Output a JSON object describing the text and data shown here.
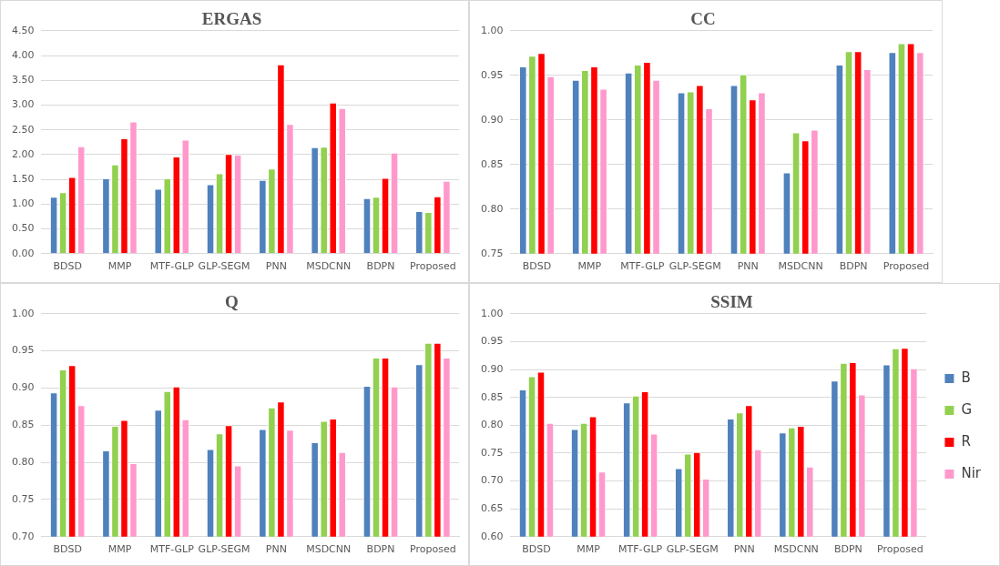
{
  "chart_data": [
    {
      "type": "bar",
      "title": "ERGAS",
      "categories": [
        "BDSD",
        "MMP",
        "MTF-GLP",
        "GLP-SEGM",
        "PNN",
        "MSDCNN",
        "BDPN",
        "Proposed"
      ],
      "series": [
        {
          "color": "#4f81bd",
          "values": [
            1.15,
            1.52,
            1.31,
            1.4,
            1.49,
            2.15,
            1.12,
            0.86
          ]
        },
        {
          "color": "#92d050",
          "values": [
            1.24,
            1.8,
            1.52,
            1.62,
            1.72,
            2.16,
            1.15,
            0.84
          ]
        },
        {
          "color": "#ff0000",
          "values": [
            1.55,
            2.33,
            1.96,
            2.01,
            3.82,
            3.05,
            1.53,
            1.16
          ]
        },
        {
          "color": "#ff99cc",
          "values": [
            2.17,
            2.67,
            2.3,
            2.0,
            2.62,
            2.94,
            2.04,
            1.47
          ]
        }
      ],
      "ylim": [
        0,
        4.5
      ],
      "yticks": [
        {
          "value": 0,
          "label": "0.00"
        },
        {
          "value": 0.5,
          "label": "0.50"
        },
        {
          "value": 1,
          "label": "1.00"
        },
        {
          "value": 1.5,
          "label": "1.50"
        },
        {
          "value": 2,
          "label": "2.00"
        },
        {
          "value": 2.5,
          "label": "2.50"
        },
        {
          "value": 3,
          "label": "3.00"
        },
        {
          "value": 3.5,
          "label": "3.50"
        },
        {
          "value": 4,
          "label": "4.00"
        },
        {
          "value": 4.5,
          "label": "4.50"
        }
      ],
      "grid": "y",
      "legend": false
    },
    {
      "type": "bar",
      "title": "CC",
      "categories": [
        "BDSD",
        "MMP",
        "MTF-GLP",
        "GLP-SEGM",
        "PNN",
        "MSDCNN",
        "BDPN",
        "Proposed"
      ],
      "series": [
        {
          "color": "#4f81bd",
          "values": [
            0.96,
            0.945,
            0.953,
            0.931,
            0.939,
            0.841,
            0.962,
            0.976
          ]
        },
        {
          "color": "#92d050",
          "values": [
            0.972,
            0.956,
            0.962,
            0.932,
            0.951,
            0.886,
            0.977,
            0.986
          ]
        },
        {
          "color": "#ff0000",
          "values": [
            0.975,
            0.96,
            0.965,
            0.939,
            0.923,
            0.877,
            0.977,
            0.986
          ]
        },
        {
          "color": "#ff99cc",
          "values": [
            0.949,
            0.935,
            0.945,
            0.913,
            0.931,
            0.889,
            0.957,
            0.976
          ]
        }
      ],
      "ylim": [
        0.75,
        1
      ],
      "yticks": [
        0.75,
        {
          "value": 0.8,
          "label": "0.80"
        },
        0.85,
        {
          "value": 0.9,
          "label": "0.90"
        },
        0.95,
        {
          "value": 1,
          "label": "1.00"
        }
      ],
      "grid": "y",
      "legend": false
    },
    {
      "type": "bar",
      "title": "Q",
      "categories": [
        "BDSD",
        "MMP",
        "MTF-GLP",
        "GLP-SEGM",
        "PNN",
        "MSDCNN",
        "BDPN",
        "Proposed"
      ],
      "series": [
        {
          "color": "#4f81bd",
          "values": [
            0.894,
            0.816,
            0.871,
            0.818,
            0.845,
            0.827,
            0.903,
            0.932
          ]
        },
        {
          "color": "#92d050",
          "values": [
            0.925,
            0.849,
            0.896,
            0.839,
            0.874,
            0.856,
            0.941,
            0.961
          ]
        },
        {
          "color": "#ff0000",
          "values": [
            0.931,
            0.857,
            0.902,
            0.85,
            0.882,
            0.859,
            0.941,
            0.961
          ]
        },
        {
          "color": "#ff99cc",
          "values": [
            0.877,
            0.799,
            0.858,
            0.796,
            0.844,
            0.814,
            0.902,
            0.941
          ]
        }
      ],
      "ylim": [
        0.7,
        1
      ],
      "yticks": [
        {
          "value": 0.7,
          "label": "0.70"
        },
        0.75,
        {
          "value": 0.8,
          "label": "0.80"
        },
        0.85,
        {
          "value": 0.9,
          "label": "0.90"
        },
        0.95,
        {
          "value": 1,
          "label": "1.00"
        }
      ],
      "grid": "y",
      "legend": false
    },
    {
      "type": "bar",
      "title": "SSIM",
      "categories": [
        "BDSD",
        "MMP",
        "MTF-GLP",
        "GLP-SEGM",
        "PNN",
        "MSDCNN",
        "BDPN",
        "Proposed"
      ],
      "series": [
        {
          "name": "B",
          "color": "#4f81bd",
          "values": [
            0.864,
            0.793,
            0.841,
            0.723,
            0.812,
            0.787,
            0.88,
            0.909
          ]
        },
        {
          "name": "G",
          "color": "#92d050",
          "values": [
            0.888,
            0.804,
            0.853,
            0.749,
            0.823,
            0.796,
            0.912,
            0.938
          ]
        },
        {
          "name": "R",
          "color": "#ff0000",
          "values": [
            0.896,
            0.816,
            0.861,
            0.752,
            0.836,
            0.799,
            0.913,
            0.939
          ]
        },
        {
          "name": "Nir",
          "color": "#ff99cc",
          "values": [
            0.804,
            0.717,
            0.785,
            0.704,
            0.757,
            0.726,
            0.855,
            0.902
          ]
        }
      ],
      "ylim": [
        0.6,
        1
      ],
      "yticks": [
        {
          "value": 0.6,
          "label": "0.60"
        },
        0.65,
        {
          "value": 0.7,
          "label": "0.70"
        },
        0.75,
        {
          "value": 0.8,
          "label": "0.80"
        },
        0.85,
        {
          "value": 0.9,
          "label": "0.90"
        },
        0.95,
        {
          "value": 1,
          "label": "1.00"
        }
      ],
      "grid": "y",
      "legend": "right"
    }
  ]
}
